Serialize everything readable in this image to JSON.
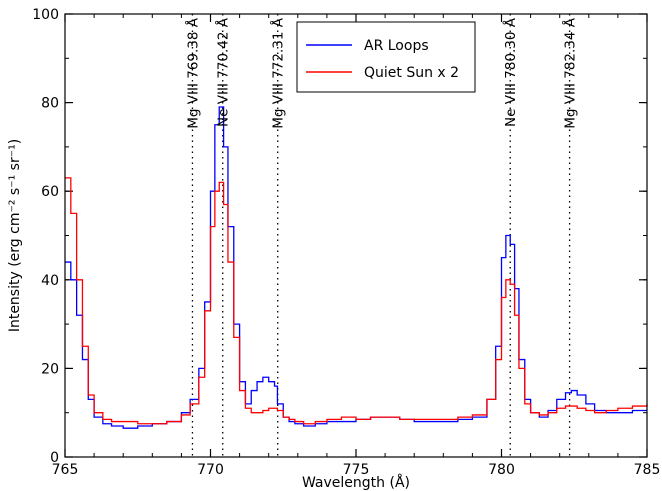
{
  "chart_data": {
    "type": "line",
    "title": "",
    "xlabel": "Wavelength (Å)",
    "ylabel": "Intensity (erg cm⁻² s⁻¹ sr⁻¹)",
    "xlim": [
      765,
      785
    ],
    "ylim": [
      0,
      100
    ],
    "x_ticks": [
      765,
      770,
      775,
      780,
      785
    ],
    "x_tick_labels": [
      "765",
      "770",
      "775",
      "780",
      "785"
    ],
    "y_ticks": [
      0,
      20,
      40,
      60,
      80,
      100
    ],
    "y_tick_labels": [
      "0",
      "20",
      "40",
      "60",
      "80",
      "100"
    ],
    "x_minor_step": 1,
    "y_minor_step": 10,
    "grid": false,
    "legend_position": "top-center",
    "colors": {
      "ar_loops": "#0000ff",
      "quiet_sun": "#ff0000"
    },
    "line_annotations": [
      {
        "x": 769.38,
        "label": "Mg VIII 769.38 Å"
      },
      {
        "x": 770.42,
        "label": "Ne VIII 770.42 Å"
      },
      {
        "x": 772.31,
        "label": "Mg VIII 772.31 Å"
      },
      {
        "x": 780.3,
        "label": "Ne VIII 780.30 Å"
      },
      {
        "x": 782.34,
        "label": "Mg VIII 782.34 Å"
      }
    ],
    "series": [
      {
        "name": "AR Loops",
        "color": "#0000ff",
        "x": [
          765.0,
          765.2,
          765.4,
          765.6,
          765.8,
          766.0,
          766.3,
          766.6,
          767.0,
          767.5,
          768.0,
          768.5,
          769.0,
          769.3,
          769.6,
          769.8,
          770.0,
          770.15,
          770.3,
          770.45,
          770.6,
          770.8,
          771.0,
          771.2,
          771.4,
          771.6,
          771.8,
          772.0,
          772.2,
          772.3,
          772.5,
          772.7,
          772.9,
          773.2,
          773.6,
          774.0,
          774.5,
          775.0,
          775.5,
          776.0,
          776.5,
          777.0,
          777.5,
          778.0,
          778.5,
          779.0,
          779.5,
          779.8,
          780.0,
          780.15,
          780.3,
          780.45,
          780.6,
          780.8,
          781.0,
          781.3,
          781.6,
          781.9,
          782.2,
          782.4,
          782.6,
          782.9,
          783.2,
          783.6,
          784.0,
          784.5,
          785.0
        ],
        "y": [
          44,
          40,
          32,
          22,
          13,
          9,
          7.5,
          7,
          6.5,
          7,
          7.5,
          8,
          10,
          13,
          20,
          35,
          60,
          75,
          79,
          70,
          52,
          30,
          17,
          12,
          15,
          17,
          18,
          17,
          16,
          12,
          9,
          8,
          7.5,
          7,
          7.5,
          8,
          8,
          8.5,
          9,
          9,
          8.5,
          8,
          8,
          8,
          8.5,
          9,
          13,
          25,
          45,
          50,
          48,
          38,
          22,
          13,
          10,
          9,
          10.5,
          13,
          14.5,
          15,
          14,
          12,
          10.5,
          10,
          10,
          10.5,
          10.5
        ]
      },
      {
        "name": "Quiet Sun x 2",
        "color": "#ff0000",
        "x": [
          765.0,
          765.2,
          765.4,
          765.6,
          765.8,
          766.0,
          766.3,
          766.6,
          767.0,
          767.5,
          768.0,
          768.5,
          769.0,
          769.3,
          769.6,
          769.8,
          770.0,
          770.15,
          770.3,
          770.45,
          770.6,
          770.8,
          771.0,
          771.2,
          771.4,
          771.6,
          771.8,
          772.0,
          772.2,
          772.3,
          772.5,
          772.7,
          772.9,
          773.2,
          773.6,
          774.0,
          774.5,
          775.0,
          775.5,
          776.0,
          776.5,
          777.0,
          777.5,
          778.0,
          778.5,
          779.0,
          779.5,
          779.8,
          780.0,
          780.15,
          780.3,
          780.45,
          780.6,
          780.8,
          781.0,
          781.3,
          781.6,
          781.9,
          782.2,
          782.4,
          782.6,
          782.9,
          783.2,
          783.6,
          784.0,
          784.5,
          785.0
        ],
        "y": [
          63,
          55,
          40,
          25,
          14,
          10,
          8.5,
          8,
          8,
          7.5,
          7.5,
          8,
          9.5,
          12,
          18,
          33,
          52,
          60,
          62,
          57,
          44,
          27,
          15,
          11,
          10,
          10,
          10.5,
          11,
          11,
          10.5,
          9,
          8.5,
          8,
          7.5,
          8,
          8.5,
          9,
          8.5,
          9,
          9,
          8.5,
          8.5,
          8.5,
          8.5,
          9,
          9.5,
          13,
          22,
          36,
          40,
          39,
          32,
          20,
          12,
          10,
          9.5,
          10,
          11,
          11.5,
          11.5,
          11,
          10.5,
          10,
          10.5,
          11,
          11.5,
          12
        ]
      }
    ]
  }
}
